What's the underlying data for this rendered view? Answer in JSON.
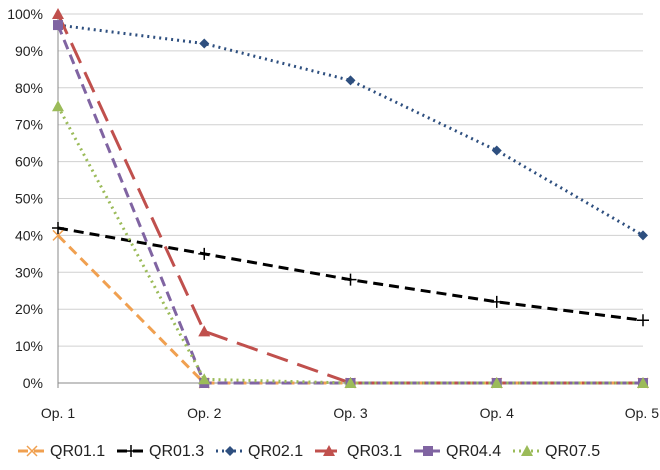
{
  "chart_data": {
    "type": "line",
    "title": "",
    "xlabel": "",
    "ylabel": "",
    "categories": [
      "Op. 1",
      "Op. 2",
      "Op. 3",
      "Op. 4",
      "Op. 5"
    ],
    "y_ticks": [
      "0%",
      "10%",
      "20%",
      "30%",
      "40%",
      "50%",
      "60%",
      "70%",
      "80%",
      "90%",
      "100%"
    ],
    "ylim": [
      0,
      100
    ],
    "y_unit": "%",
    "grid": "horizontal",
    "legend_position": "bottom",
    "series": [
      {
        "name": "QR01.1",
        "color": "#f0a050",
        "dash": "dashed",
        "marker": "x",
        "values": [
          40,
          0,
          0,
          0,
          0
        ]
      },
      {
        "name": "QR01.3",
        "color": "#000000",
        "dash": "dashed",
        "marker": "plus",
        "values": [
          42,
          35,
          28,
          22,
          17
        ]
      },
      {
        "name": "QR02.1",
        "color": "#2e4f7f",
        "dash": "dotted",
        "marker": "diamond",
        "values": [
          97,
          92,
          82,
          63,
          40
        ]
      },
      {
        "name": "QR03.1",
        "color": "#c0504d",
        "dash": "longdash",
        "marker": "triangle",
        "values": [
          100,
          14,
          0,
          0,
          0
        ]
      },
      {
        "name": "QR04.4",
        "color": "#8064a2",
        "dash": "dashed",
        "marker": "square",
        "values": [
          97,
          0,
          0,
          0,
          0
        ]
      },
      {
        "name": "QR07.5",
        "color": "#9bbb59",
        "dash": "dotted",
        "marker": "triangle",
        "values": [
          75,
          1,
          0,
          0,
          0
        ]
      }
    ]
  }
}
